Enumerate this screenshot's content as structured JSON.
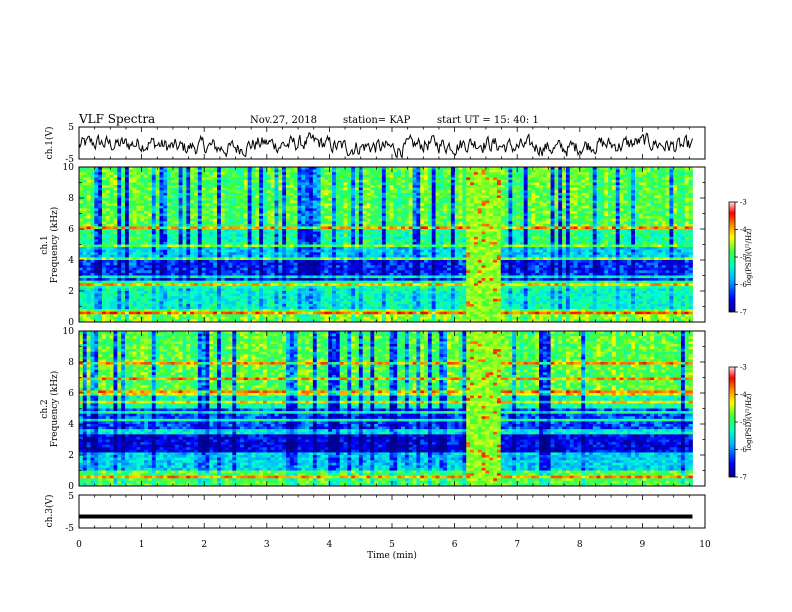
{
  "header": {
    "title": "VLF Spectra",
    "date": "Nov.27, 2018",
    "station": "station= KAP",
    "start_ut": "start  UT  =   15: 40: 1"
  },
  "chart_data": [
    {
      "type": "line",
      "panel": "ch1-waveform",
      "ylabel": "ch.1(V)",
      "ylim": [
        -5,
        5
      ],
      "yticks": [
        "5",
        "-5"
      ],
      "xlim": [
        0,
        10
      ],
      "note": "noisy waveform oscillating roughly between -4 and 3 V"
    },
    {
      "type": "heatmap",
      "panel": "ch1-spectrogram",
      "ylabel_top": "ch.1",
      "ylabel": "Frequency  (kHz)",
      "ylim": [
        0,
        10
      ],
      "yticks": [
        "0",
        "2",
        "4",
        "6",
        "8",
        "10"
      ],
      "xlim": [
        0,
        10
      ],
      "data_extent_min": 9.8,
      "bright_interval_min": [
        6.2,
        6.75
      ],
      "colorbar": {
        "label": "log(PSD)(V²/Hz)",
        "range": [
          -7,
          -3
        ],
        "ticks": [
          "-3",
          "-4",
          "-5",
          "-6",
          "-7"
        ]
      }
    },
    {
      "type": "heatmap",
      "panel": "ch2-spectrogram",
      "ylabel_top": "ch.2",
      "ylabel": "Frequency  (kHz)",
      "ylim": [
        0,
        10
      ],
      "yticks": [
        "0",
        "2",
        "4",
        "6",
        "8",
        "10"
      ],
      "xlim": [
        0,
        10
      ],
      "data_extent_min": 9.8,
      "bright_interval_min": [
        6.2,
        6.75
      ],
      "colorbar": {
        "label": "log(PSD)(V²/Hz)",
        "range": [
          -7,
          -3
        ],
        "ticks": [
          "-3",
          "-4",
          "-5",
          "-6",
          "-7"
        ]
      }
    },
    {
      "type": "line",
      "panel": "ch3-waveform",
      "ylabel": "ch.3(V)",
      "ylim": [
        -5,
        5
      ],
      "yticks": [
        "5",
        "-5"
      ],
      "xlim": [
        0,
        10
      ],
      "values_constant": -1.5,
      "xlabel": "Time  (min)",
      "xticks": [
        "0",
        "1",
        "2",
        "3",
        "4",
        "5",
        "6",
        "7",
        "8",
        "9",
        "10"
      ]
    }
  ],
  "colors": {
    "colormap": [
      "#00008f",
      "#0000ff",
      "#00b4ff",
      "#00ffd0",
      "#3cff3c",
      "#ffff00",
      "#ff8000",
      "#ff0000",
      "#a00000"
    ],
    "line": "#000000"
  }
}
